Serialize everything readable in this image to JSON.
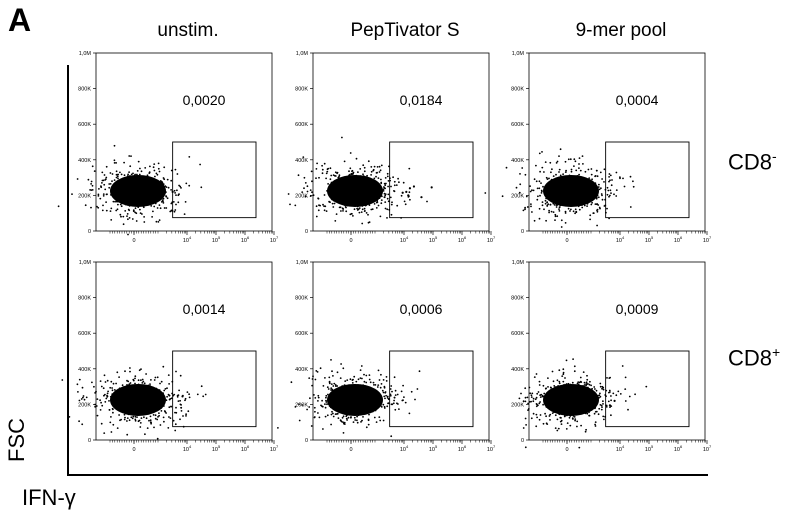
{
  "panel_label": "A",
  "x_axis_title": "IFN-γ",
  "y_axis_title": "FSC",
  "columns": [
    "unstim.",
    "PepTivator S",
    "9-mer pool"
  ],
  "rows": [
    {
      "label": "CD8",
      "sup": "-"
    },
    {
      "label": "CD8",
      "sup": "+"
    }
  ],
  "chart_data": {
    "type": "scatter",
    "ytick_labels": [
      "0",
      "200K",
      "400K",
      "600K",
      "800K",
      "1,0M"
    ],
    "xtick_labels": [
      {
        "text": "0",
        "exp": ""
      },
      {
        "text": "10",
        "exp": "4"
      },
      {
        "text": "10",
        "exp": "5"
      },
      {
        "text": "10",
        "exp": "6"
      },
      {
        "text": "10",
        "exp": "7"
      }
    ],
    "panels": [
      {
        "row": 0,
        "col": 0,
        "value": "0,0020",
        "outliers": [
          [
            -40,
            255000
          ],
          [
            3200,
            220000
          ]
        ]
      },
      {
        "row": 0,
        "col": 1,
        "value": "0,0184",
        "outliers": [
          [
            -50,
            150000
          ],
          [
            9000,
            215000
          ],
          [
            12000,
            220000
          ],
          [
            16000,
            240000
          ],
          [
            22000,
            250000
          ],
          [
            40000,
            190000
          ],
          [
            90000,
            245000
          ],
          [
            14000,
            200000
          ]
        ]
      },
      {
        "row": 0,
        "col": 2,
        "value": "0,0004",
        "outliers": []
      },
      {
        "row": 1,
        "col": 0,
        "value": "0,0014",
        "outliers": [
          [
            -60,
            265000
          ],
          [
            7000,
            245000
          ]
        ]
      },
      {
        "row": 1,
        "col": 1,
        "value": "0,0006",
        "outliers": [
          [
            -50,
            300000
          ],
          [
            3000,
            230000
          ]
        ]
      },
      {
        "row": 1,
        "col": 2,
        "value": "0,0009",
        "outliers": [
          [
            4500,
            195000
          ],
          [
            6500,
            220000
          ]
        ]
      }
    ]
  }
}
